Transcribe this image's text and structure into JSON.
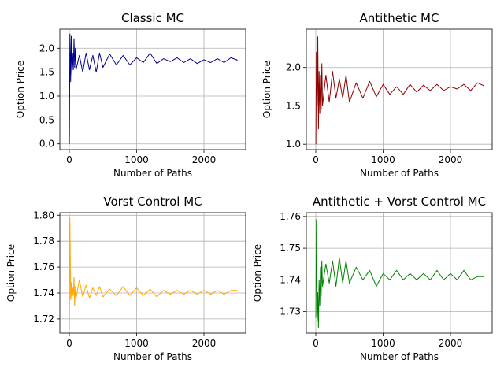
{
  "chart_data": [
    {
      "type": "line",
      "title": "Classic MC",
      "xlabel": "Number of Paths",
      "ylabel": "Option Price",
      "xlim": [
        -140,
        2620
      ],
      "ylim": [
        -0.12,
        2.4
      ],
      "xticks": [
        0,
        1000,
        2000
      ],
      "xtick_labels": [
        "0",
        "1000",
        "2000"
      ],
      "yticks": [
        0.0,
        0.5,
        1.0,
        1.5,
        2.0
      ],
      "ytick_labels": [
        "0.0",
        "0.5",
        "1.0",
        "1.5",
        "2.0"
      ],
      "grid": true,
      "color": "#00008b",
      "series": [
        {
          "x": [
            1,
            10,
            20,
            30,
            40,
            50,
            60,
            70,
            80,
            90,
            100,
            150,
            200,
            250,
            300,
            350,
            400,
            450,
            500,
            600,
            700,
            800,
            900,
            1000,
            1100,
            1200,
            1300,
            1400,
            1500,
            1600,
            1700,
            1800,
            1900,
            2000,
            2100,
            2200,
            2300,
            2400,
            2500
          ],
          "y": [
            0.0,
            2.3,
            1.3,
            2.25,
            1.45,
            1.9,
            1.55,
            2.2,
            1.6,
            2.0,
            1.55,
            1.85,
            1.5,
            1.9,
            1.55,
            1.85,
            1.5,
            1.9,
            1.6,
            1.88,
            1.65,
            1.85,
            1.65,
            1.8,
            1.7,
            1.9,
            1.68,
            1.78,
            1.72,
            1.8,
            1.7,
            1.78,
            1.68,
            1.76,
            1.7,
            1.78,
            1.7,
            1.8,
            1.75
          ]
        }
      ]
    },
    {
      "type": "line",
      "title": "Antithetic MC",
      "xlabel": "Number of Paths",
      "ylabel": "Option Price",
      "xlim": [
        -140,
        2620
      ],
      "ylim": [
        0.93,
        2.5
      ],
      "xticks": [
        0,
        1000,
        2000
      ],
      "xtick_labels": [
        "0",
        "1000",
        "2000"
      ],
      "yticks": [
        1.0,
        1.5,
        2.0
      ],
      "ytick_labels": [
        "1.0",
        "1.5",
        "2.0"
      ],
      "grid": true,
      "color": "#8b0000",
      "series": [
        {
          "x": [
            1,
            10,
            20,
            30,
            40,
            50,
            60,
            70,
            80,
            90,
            100,
            150,
            200,
            250,
            300,
            350,
            400,
            450,
            500,
            600,
            700,
            800,
            900,
            1000,
            1100,
            1200,
            1300,
            1400,
            1500,
            1600,
            1700,
            1800,
            1900,
            2000,
            2100,
            2200,
            2300,
            2400,
            2500
          ],
          "y": [
            1.0,
            2.2,
            1.5,
            2.4,
            1.2,
            1.95,
            1.4,
            1.9,
            1.45,
            2.05,
            1.5,
            1.9,
            1.55,
            1.95,
            1.6,
            1.85,
            1.6,
            1.9,
            1.55,
            1.8,
            1.6,
            1.82,
            1.62,
            1.78,
            1.65,
            1.75,
            1.65,
            1.78,
            1.68,
            1.77,
            1.7,
            1.78,
            1.7,
            1.75,
            1.72,
            1.78,
            1.7,
            1.8,
            1.76
          ]
        }
      ]
    },
    {
      "type": "line",
      "title": "Vorst Control MC",
      "xlabel": "Number of Paths",
      "ylabel": "Option Price",
      "xlim": [
        -140,
        2620
      ],
      "ylim": [
        1.709,
        1.802
      ],
      "xticks": [
        0,
        1000,
        2000
      ],
      "xtick_labels": [
        "0",
        "1000",
        "2000"
      ],
      "yticks": [
        1.72,
        1.74,
        1.76,
        1.78,
        1.8
      ],
      "ytick_labels": [
        "1.72",
        "1.74",
        "1.76",
        "1.78",
        "1.80"
      ],
      "grid": true,
      "color": "#ffa500",
      "series": [
        {
          "x": [
            1,
            10,
            20,
            30,
            40,
            50,
            60,
            70,
            80,
            90,
            100,
            150,
            200,
            250,
            300,
            350,
            400,
            450,
            500,
            600,
            700,
            800,
            900,
            1000,
            1100,
            1200,
            1300,
            1400,
            1500,
            1600,
            1700,
            1800,
            1900,
            2000,
            2100,
            2200,
            2300,
            2400,
            2500
          ],
          "y": [
            1.712,
            1.798,
            1.735,
            1.748,
            1.733,
            1.744,
            1.738,
            1.752,
            1.73,
            1.745,
            1.736,
            1.75,
            1.737,
            1.746,
            1.736,
            1.744,
            1.738,
            1.745,
            1.737,
            1.743,
            1.738,
            1.745,
            1.738,
            1.744,
            1.738,
            1.743,
            1.737,
            1.742,
            1.739,
            1.742,
            1.739,
            1.742,
            1.739,
            1.742,
            1.739,
            1.742,
            1.739,
            1.742,
            1.742
          ]
        }
      ]
    },
    {
      "type": "line",
      "title": "Antithetic + Vorst Control MC",
      "xlabel": "Number of Paths",
      "ylabel": "Option Price",
      "xlim": [
        -140,
        2620
      ],
      "ylim": [
        1.7232,
        1.7612
      ],
      "xticks": [
        0,
        1000,
        2000
      ],
      "xtick_labels": [
        "0",
        "1000",
        "2000"
      ],
      "yticks": [
        1.73,
        1.74,
        1.75,
        1.76
      ],
      "ytick_labels": [
        "1.73",
        "1.74",
        "1.75",
        "1.76"
      ],
      "grid": true,
      "color": "#008000",
      "series": [
        {
          "x": [
            1,
            10,
            20,
            30,
            40,
            50,
            60,
            70,
            80,
            90,
            100,
            150,
            200,
            250,
            300,
            350,
            400,
            450,
            500,
            600,
            700,
            800,
            900,
            1000,
            1100,
            1200,
            1300,
            1400,
            1500,
            1600,
            1700,
            1800,
            1900,
            2000,
            2100,
            2200,
            2300,
            2400,
            2500
          ],
          "y": [
            1.728,
            1.759,
            1.727,
            1.736,
            1.725,
            1.74,
            1.732,
            1.744,
            1.735,
            1.746,
            1.738,
            1.745,
            1.739,
            1.746,
            1.738,
            1.747,
            1.739,
            1.746,
            1.739,
            1.744,
            1.74,
            1.743,
            1.738,
            1.742,
            1.74,
            1.743,
            1.74,
            1.742,
            1.74,
            1.742,
            1.74,
            1.743,
            1.74,
            1.742,
            1.74,
            1.743,
            1.74,
            1.741,
            1.741
          ]
        }
      ]
    }
  ]
}
